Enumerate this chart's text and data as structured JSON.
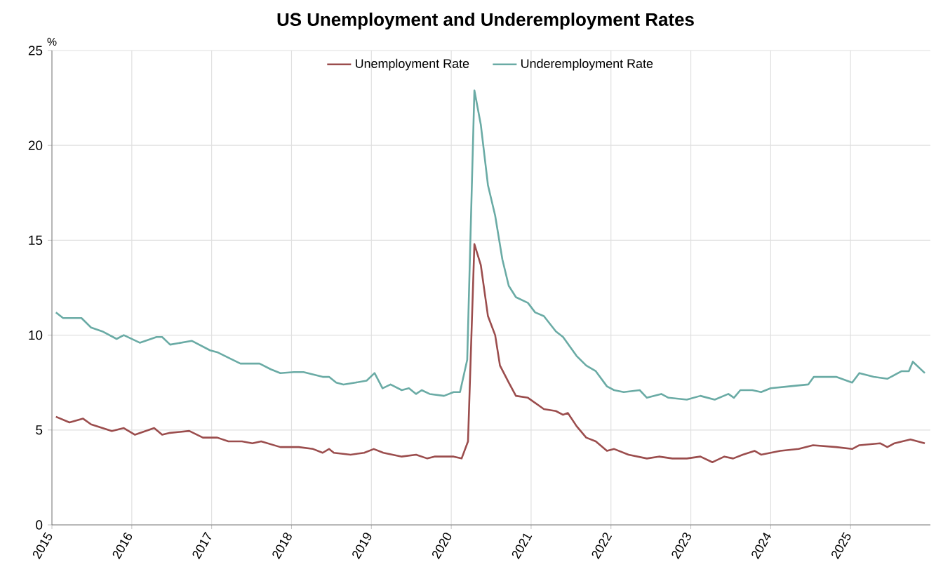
{
  "chart_data": {
    "type": "line",
    "title": "US Unemployment and Underemployment Rates",
    "ylabel": "%",
    "xlim": [
      2015,
      2026
    ],
    "xticks": [
      2015,
      2016,
      2017,
      2018,
      2019,
      2020,
      2021,
      2022,
      2023,
      2024,
      2025
    ],
    "ylim": [
      0,
      25
    ],
    "yticks": [
      0,
      5,
      10,
      15,
      20,
      25
    ],
    "grid": true,
    "legend": "top",
    "marker": "none",
    "line_style": "solid",
    "series": [
      {
        "name": "Unemployment Rate",
        "color": "#9b4d4d",
        "x": [
          2015.05,
          2015.22,
          2015.39,
          2015.49,
          2015.75,
          2015.9,
          2016.04,
          2016.28,
          2016.38,
          2016.48,
          2016.72,
          2016.89,
          2017.07,
          2017.21,
          2017.38,
          2017.51,
          2017.62,
          2017.86,
          2018.09,
          2018.27,
          2018.39,
          2018.47,
          2018.53,
          2018.74,
          2018.91,
          2019.03,
          2019.15,
          2019.38,
          2019.56,
          2019.7,
          2019.79,
          2020.03,
          2020.13,
          2020.21,
          2020.29,
          2020.37,
          2020.46,
          2020.55,
          2020.61,
          2020.72,
          2020.81,
          2020.96,
          2021.16,
          2021.31,
          2021.4,
          2021.46,
          2021.57,
          2021.69,
          2021.81,
          2021.95,
          2022.04,
          2022.22,
          2022.45,
          2022.6,
          2022.77,
          2022.95,
          2023.12,
          2023.27,
          2023.42,
          2023.53,
          2023.65,
          2023.8,
          2023.88,
          2024.0,
          2024.12,
          2024.35,
          2024.53,
          2024.82,
          2025.02,
          2025.11,
          2025.37,
          2025.46,
          2025.55,
          2025.75,
          2025.93
        ],
        "values": [
          5.7,
          5.4,
          5.6,
          5.3,
          4.95,
          5.1,
          4.75,
          5.1,
          4.75,
          4.85,
          4.95,
          4.6,
          4.6,
          4.4,
          4.4,
          4.3,
          4.4,
          4.1,
          4.1,
          4.0,
          3.8,
          4.0,
          3.8,
          3.7,
          3.8,
          4.0,
          3.8,
          3.6,
          3.7,
          3.5,
          3.6,
          3.6,
          3.5,
          4.4,
          14.8,
          13.7,
          11.0,
          10.0,
          8.4,
          7.5,
          6.8,
          6.7,
          6.1,
          6.0,
          5.8,
          5.9,
          5.2,
          4.6,
          4.4,
          3.9,
          4.0,
          3.7,
          3.5,
          3.6,
          3.5,
          3.5,
          3.6,
          3.3,
          3.6,
          3.5,
          3.7,
          3.9,
          3.7,
          3.8,
          3.9,
          4.0,
          4.2,
          4.1,
          4.0,
          4.2,
          4.3,
          4.1,
          4.3,
          4.5,
          4.3
        ]
      },
      {
        "name": "Underemployment Rate",
        "color": "#6aaba5",
        "x": [
          2015.05,
          2015.14,
          2015.37,
          2015.49,
          2015.63,
          2015.81,
          2015.9,
          2016.1,
          2016.31,
          2016.38,
          2016.48,
          2016.75,
          2016.98,
          2017.07,
          2017.36,
          2017.6,
          2017.74,
          2017.86,
          2018.03,
          2018.15,
          2018.39,
          2018.47,
          2018.56,
          2018.65,
          2018.8,
          2018.94,
          2019.04,
          2019.14,
          2019.24,
          2019.38,
          2019.47,
          2019.56,
          2019.63,
          2019.73,
          2019.91,
          2020.03,
          2020.11,
          2020.2,
          2020.29,
          2020.37,
          2020.46,
          2020.55,
          2020.64,
          2020.72,
          2020.81,
          2020.96,
          2021.05,
          2021.16,
          2021.31,
          2021.4,
          2021.57,
          2021.69,
          2021.81,
          2021.95,
          2022.04,
          2022.16,
          2022.36,
          2022.45,
          2022.63,
          2022.72,
          2022.95,
          2023.12,
          2023.3,
          2023.47,
          2023.54,
          2023.62,
          2023.77,
          2023.88,
          2024.0,
          2024.23,
          2024.47,
          2024.54,
          2024.82,
          2025.02,
          2025.11,
          2025.29,
          2025.46,
          2025.64,
          2025.73,
          2025.78,
          2025.93
        ],
        "values": [
          11.2,
          10.9,
          10.9,
          10.4,
          10.2,
          9.8,
          10.0,
          9.6,
          9.9,
          9.9,
          9.5,
          9.7,
          9.2,
          9.1,
          8.5,
          8.5,
          8.2,
          8.0,
          8.05,
          8.05,
          7.8,
          7.8,
          7.5,
          7.4,
          7.5,
          7.6,
          8.0,
          7.2,
          7.4,
          7.1,
          7.2,
          6.9,
          7.1,
          6.9,
          6.8,
          7.0,
          7.0,
          8.7,
          22.9,
          21.1,
          17.9,
          16.3,
          14.0,
          12.6,
          12.0,
          11.7,
          11.2,
          11.0,
          10.2,
          9.9,
          8.9,
          8.4,
          8.1,
          7.3,
          7.1,
          7.0,
          7.1,
          6.7,
          6.9,
          6.7,
          6.6,
          6.8,
          6.6,
          6.9,
          6.7,
          7.1,
          7.1,
          7.0,
          7.2,
          7.3,
          7.4,
          7.8,
          7.8,
          7.5,
          8.0,
          7.8,
          7.7,
          8.1,
          8.1,
          8.6,
          8.0
        ]
      }
    ]
  }
}
